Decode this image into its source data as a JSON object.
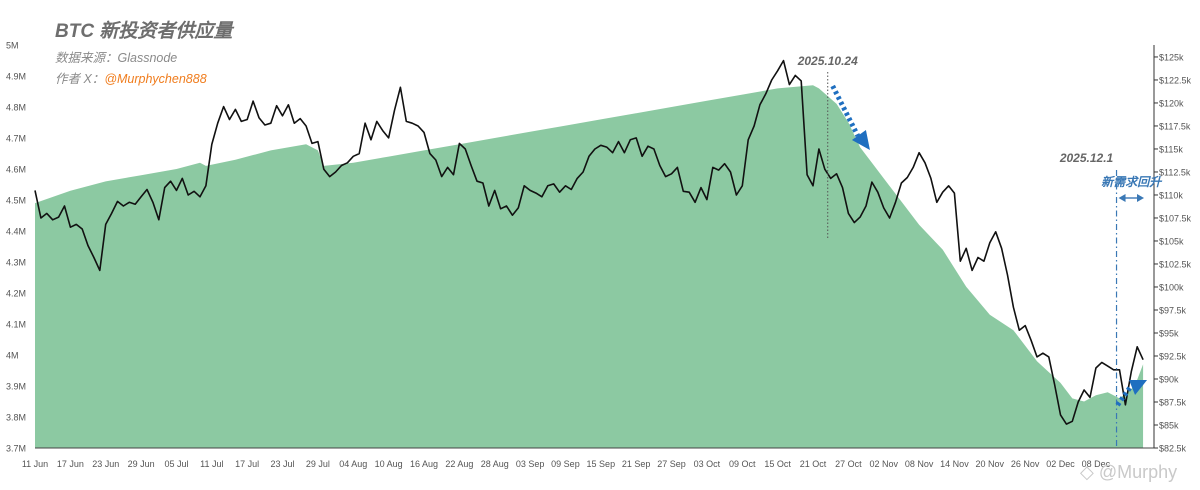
{
  "chart_data": {
    "type": "area",
    "title": "BTC 新投资者供应量",
    "source_label": "数据来源：Glassnode",
    "author_label": "作者 X：",
    "author_handle": "@Murphychen888",
    "watermark": "glassnode",
    "footer_watermark": "@Murphy",
    "x_tick_labels": [
      "11 Jun",
      "17 Jun",
      "23 Jun",
      "29 Jun",
      "05 Jul",
      "11 Jul",
      "17 Jul",
      "23 Jul",
      "29 Jul",
      "04 Aug",
      "10 Aug",
      "16 Aug",
      "22 Aug",
      "28 Aug",
      "03 Sep",
      "09 Sep",
      "15 Sep",
      "21 Sep",
      "27 Sep",
      "03 Oct",
      "09 Oct",
      "15 Oct",
      "21 Oct",
      "27 Oct",
      "02 Nov",
      "08 Nov",
      "14 Nov",
      "20 Nov",
      "26 Nov",
      "02 Dec",
      "08 Dec"
    ],
    "y_left_ticks": [
      "3.7M",
      "3.8M",
      "3.9M",
      "4M",
      "4.1M",
      "4.2M",
      "4.3M",
      "4.4M",
      "4.5M",
      "4.6M",
      "4.7M",
      "4.8M",
      "4.9M",
      "5M"
    ],
    "y_left_range": [
      3.7,
      5.0
    ],
    "y_right_ticks": [
      "$82.5k",
      "$85k",
      "$87.5k",
      "$90k",
      "$92.5k",
      "$95k",
      "$97.5k",
      "$100k",
      "$102.5k",
      "$105k",
      "$107.5k",
      "$110k",
      "$112.5k",
      "$115k",
      "$117.5k",
      "$120k",
      "$122.5k",
      "$125k"
    ],
    "y_right_range": [
      82.5,
      126.3
    ],
    "series": [
      {
        "name": "",
        "kind": "area",
        "axis": "left",
        "color": "#8cc9a2",
        "points": [
          [
            0,
            4.49
          ],
          [
            6,
            4.53
          ],
          [
            12,
            4.56
          ],
          [
            18,
            4.58
          ],
          [
            24,
            4.6
          ],
          [
            28,
            4.62
          ],
          [
            29,
            4.61
          ],
          [
            34,
            4.63
          ],
          [
            40,
            4.66
          ],
          [
            46,
            4.68
          ],
          [
            48,
            4.66
          ],
          [
            49,
            4.61
          ],
          [
            54,
            4.62
          ],
          [
            60,
            4.64
          ],
          [
            66,
            4.66
          ],
          [
            72,
            4.68
          ],
          [
            78,
            4.7
          ],
          [
            84,
            4.72
          ],
          [
            90,
            4.74
          ],
          [
            96,
            4.76
          ],
          [
            102,
            4.78
          ],
          [
            108,
            4.8
          ],
          [
            114,
            4.82
          ],
          [
            120,
            4.84
          ],
          [
            126,
            4.86
          ],
          [
            132,
            4.87
          ],
          [
            133,
            4.86
          ],
          [
            136,
            4.81
          ],
          [
            138,
            4.75
          ],
          [
            140,
            4.67
          ],
          [
            142,
            4.62
          ],
          [
            146,
            4.52
          ],
          [
            150,
            4.42
          ],
          [
            154,
            4.34
          ],
          [
            158,
            4.22
          ],
          [
            162,
            4.13
          ],
          [
            166,
            4.08
          ],
          [
            170,
            3.98
          ],
          [
            174,
            3.91
          ],
          [
            176,
            3.86
          ],
          [
            178,
            3.85
          ],
          [
            180,
            3.87
          ],
          [
            182,
            3.88
          ],
          [
            184,
            3.86
          ],
          [
            186,
            3.89
          ],
          [
            187,
            3.92
          ],
          [
            188,
            3.97
          ]
        ]
      },
      {
        "name": "",
        "kind": "line",
        "axis": "right",
        "color": "#111111",
        "points": [
          [
            0,
            110.5
          ],
          [
            1,
            107.5
          ],
          [
            2,
            108.0
          ],
          [
            3,
            107.3
          ],
          [
            4,
            107.6
          ],
          [
            5,
            108.8
          ],
          [
            6,
            106.5
          ],
          [
            7,
            106.8
          ],
          [
            8,
            106.3
          ],
          [
            9,
            104.5
          ],
          [
            10,
            103.2
          ],
          [
            11,
            101.8
          ],
          [
            12,
            106.8
          ],
          [
            13,
            108.0
          ],
          [
            14,
            109.3
          ],
          [
            15,
            108.8
          ],
          [
            16,
            109.2
          ],
          [
            17,
            109.0
          ],
          [
            18,
            109.8
          ],
          [
            19,
            110.6
          ],
          [
            20,
            109.2
          ],
          [
            21,
            107.3
          ],
          [
            22,
            110.8
          ],
          [
            23,
            111.5
          ],
          [
            24,
            110.5
          ],
          [
            25,
            111.8
          ],
          [
            26,
            110.0
          ],
          [
            27,
            110.4
          ],
          [
            28,
            109.8
          ],
          [
            29,
            111.0
          ],
          [
            30,
            115.5
          ],
          [
            31,
            117.8
          ],
          [
            32,
            119.6
          ],
          [
            33,
            118.2
          ],
          [
            34,
            119.3
          ],
          [
            35,
            118.0
          ],
          [
            36,
            118.2
          ],
          [
            37,
            120.2
          ],
          [
            38,
            118.4
          ],
          [
            39,
            117.6
          ],
          [
            40,
            117.8
          ],
          [
            41,
            119.7
          ],
          [
            42,
            118.6
          ],
          [
            43,
            119.8
          ],
          [
            44,
            117.8
          ],
          [
            45,
            118.3
          ],
          [
            46,
            117.5
          ],
          [
            47,
            115.6
          ],
          [
            48,
            115.8
          ],
          [
            49,
            112.8
          ],
          [
            50,
            112.0
          ],
          [
            51,
            112.5
          ],
          [
            52,
            113.2
          ],
          [
            53,
            113.5
          ],
          [
            54,
            114.2
          ],
          [
            55,
            114.5
          ],
          [
            56,
            117.8
          ],
          [
            57,
            116.0
          ],
          [
            58,
            118.0
          ],
          [
            59,
            117.0
          ],
          [
            60,
            116.2
          ],
          [
            61,
            119.2
          ],
          [
            62,
            121.7
          ],
          [
            63,
            118.0
          ],
          [
            64,
            117.8
          ],
          [
            65,
            117.5
          ],
          [
            66,
            116.8
          ],
          [
            67,
            114.5
          ],
          [
            68,
            113.8
          ],
          [
            69,
            112.0
          ],
          [
            70,
            113.0
          ],
          [
            71,
            112.2
          ],
          [
            72,
            115.6
          ],
          [
            73,
            115.0
          ],
          [
            74,
            113.2
          ],
          [
            75,
            111.5
          ],
          [
            76,
            111.3
          ],
          [
            77,
            108.8
          ],
          [
            78,
            110.5
          ],
          [
            79,
            108.5
          ],
          [
            80,
            108.8
          ],
          [
            81,
            107.8
          ],
          [
            82,
            108.6
          ],
          [
            83,
            111.0
          ],
          [
            84,
            110.5
          ],
          [
            85,
            110.2
          ],
          [
            86,
            109.8
          ],
          [
            87,
            111.0
          ],
          [
            88,
            111.2
          ],
          [
            89,
            110.3
          ],
          [
            90,
            111.0
          ],
          [
            91,
            110.6
          ],
          [
            92,
            111.8
          ],
          [
            93,
            112.5
          ],
          [
            94,
            114.2
          ],
          [
            95,
            115.0
          ],
          [
            96,
            115.4
          ],
          [
            97,
            115.2
          ],
          [
            98,
            114.6
          ],
          [
            99,
            115.8
          ],
          [
            100,
            114.6
          ],
          [
            101,
            116.0
          ],
          [
            102,
            116.2
          ],
          [
            103,
            114.2
          ],
          [
            104,
            115.3
          ],
          [
            105,
            115.0
          ],
          [
            106,
            113.2
          ],
          [
            107,
            112.0
          ],
          [
            108,
            112.3
          ],
          [
            109,
            113.0
          ],
          [
            110,
            110.4
          ],
          [
            111,
            110.3
          ],
          [
            112,
            109.2
          ],
          [
            113,
            110.8
          ],
          [
            114,
            109.5
          ],
          [
            115,
            113.0
          ],
          [
            116,
            112.7
          ],
          [
            117,
            113.4
          ],
          [
            118,
            112.5
          ],
          [
            119,
            110.0
          ],
          [
            120,
            111.0
          ],
          [
            121,
            116.0
          ],
          [
            122,
            117.5
          ],
          [
            123,
            119.8
          ],
          [
            124,
            121.0
          ],
          [
            125,
            122.5
          ],
          [
            126,
            123.5
          ],
          [
            127,
            124.6
          ],
          [
            128,
            122.0
          ],
          [
            129,
            123.0
          ],
          [
            130,
            122.4
          ],
          [
            131,
            112.2
          ],
          [
            132,
            111.0
          ],
          [
            133,
            115.0
          ],
          [
            134,
            112.8
          ],
          [
            135,
            111.8
          ],
          [
            136,
            112.3
          ],
          [
            137,
            110.8
          ],
          [
            138,
            108.0
          ],
          [
            139,
            107.0
          ],
          [
            140,
            107.6
          ],
          [
            141,
            108.8
          ],
          [
            142,
            111.4
          ],
          [
            143,
            110.3
          ],
          [
            144,
            108.6
          ],
          [
            145,
            107.5
          ],
          [
            146,
            109.2
          ],
          [
            147,
            111.3
          ],
          [
            148,
            111.9
          ],
          [
            149,
            113.0
          ],
          [
            150,
            114.6
          ],
          [
            151,
            113.5
          ],
          [
            152,
            111.8
          ],
          [
            153,
            109.2
          ],
          [
            154,
            110.3
          ],
          [
            155,
            111.0
          ],
          [
            156,
            110.2
          ],
          [
            157,
            102.8
          ],
          [
            158,
            104.2
          ],
          [
            159,
            101.8
          ],
          [
            160,
            103.2
          ],
          [
            161,
            102.8
          ],
          [
            162,
            104.8
          ],
          [
            163,
            106.0
          ],
          [
            164,
            104.2
          ],
          [
            165,
            101.3
          ],
          [
            166,
            97.8
          ],
          [
            167,
            95.3
          ],
          [
            168,
            95.8
          ],
          [
            169,
            94.2
          ],
          [
            170,
            92.4
          ],
          [
            171,
            92.8
          ],
          [
            172,
            92.4
          ],
          [
            173,
            89.4
          ],
          [
            174,
            86.1
          ],
          [
            175,
            85.1
          ],
          [
            176,
            85.4
          ],
          [
            177,
            87.5
          ],
          [
            178,
            88.8
          ],
          [
            179,
            88.0
          ],
          [
            180,
            91.2
          ],
          [
            181,
            91.8
          ],
          [
            182,
            91.4
          ],
          [
            183,
            91.0
          ],
          [
            184,
            91.0
          ],
          [
            185,
            87.2
          ],
          [
            186,
            90.8
          ],
          [
            187,
            93.5
          ],
          [
            188,
            92.1
          ]
        ]
      }
    ],
    "annotations": [
      {
        "label": "2025.10.24",
        "style": "dotted-vertical",
        "x": 134.5,
        "color": "#555555"
      },
      {
        "label": "2025.12.1",
        "style": "dashdot-vertical",
        "x": 183.5,
        "color": "#3a78b5"
      },
      {
        "label": "新需求回升",
        "style": "range-arrow",
        "x": [
          183.5,
          188.5
        ],
        "color": "#3a78b5"
      },
      {
        "label": "",
        "style": "dotted-arrow-down",
        "x": [
          135,
          142
        ],
        "color": "#1f6fc0"
      },
      {
        "label": "",
        "style": "dotted-arrow-up",
        "x": [
          183,
          188
        ],
        "color": "#1f6fc0"
      }
    ],
    "grid": false,
    "xlim": [
      0,
      188.5
    ]
  }
}
